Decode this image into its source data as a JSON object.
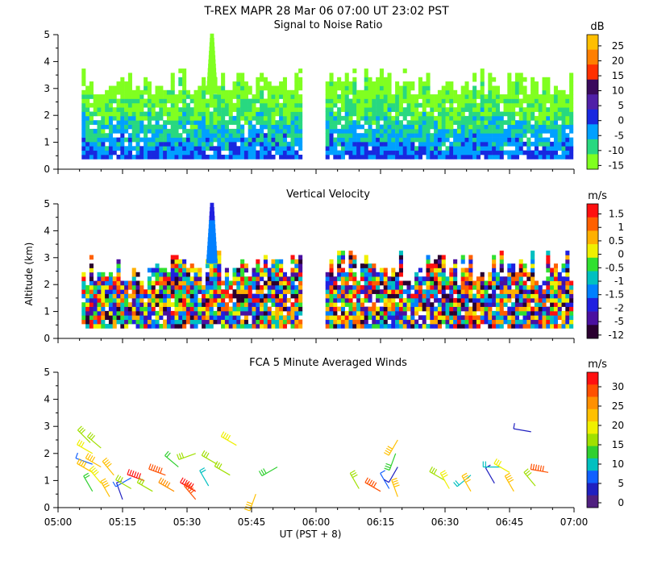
{
  "figure": {
    "title_line1": "T-REX   MAPR 28 Mar 06   07:00 UT   23:02   PST",
    "y_axis_label": "Altitude (km)",
    "x_axis_label": "UT  (PST + 8)"
  },
  "chart_data": [
    {
      "type": "heatmap",
      "title": "Signal to Noise Ratio",
      "x_ticks": [
        "05:00",
        "05:15",
        "05:30",
        "05:45",
        "06:00",
        "06:15",
        "06:30",
        "06:45",
        "07:00"
      ],
      "xlim_minutes": [
        0,
        120
      ],
      "y_ticks": [
        0,
        1,
        2,
        3,
        4,
        5
      ],
      "ylim_km": [
        0,
        5
      ],
      "colorbar_unit": "dB",
      "colorbar_labels": [
        "25",
        "20",
        "15",
        "10",
        "5",
        "0",
        "-5",
        "-10",
        "-15"
      ],
      "colorbar_colors": [
        "#ffbf00",
        "#ff7f00",
        "#ff3000",
        "#3a0a5c",
        "#5020a8",
        "#1828e0",
        "#00a0ff",
        "#28d880",
        "#80ff20"
      ],
      "data_gap_minutes": [
        56.4,
        62.2
      ],
      "coverage_minutes": [
        [
          5.5,
          56.4
        ],
        [
          62.2,
          119.5
        ]
      ],
      "min_alt_km": 0.38
    },
    {
      "type": "heatmap",
      "title": "Vertical Velocity",
      "x_ticks": [
        "05:00",
        "05:15",
        "05:30",
        "05:45",
        "06:00",
        "06:15",
        "06:30",
        "06:45",
        "07:00"
      ],
      "xlim_minutes": [
        0,
        120
      ],
      "y_ticks": [
        0,
        1,
        2,
        3,
        4,
        5
      ],
      "ylim_km": [
        0,
        5
      ],
      "colorbar_unit": "m/s",
      "colorbar_labels": [
        "1.5",
        "1",
        "0.5",
        "0",
        "-0.5",
        "-1",
        "-1.5",
        "-2",
        "-5",
        "-12"
      ],
      "colorbar_colors": [
        "#ff1010",
        "#ff6000",
        "#ffb000",
        "#f0f000",
        "#30e030",
        "#00c0c0",
        "#0080ff",
        "#2020e0",
        "#4a10a0",
        "#2a0030"
      ],
      "data_gap_minutes": [
        56.4,
        62.2
      ],
      "coverage_minutes": [
        [
          5.5,
          56.4
        ],
        [
          62.2,
          119.5
        ]
      ],
      "min_alt_km": 0.38
    },
    {
      "type": "scatter",
      "title": "FCA 5 Minute Averaged Winds",
      "x_ticks": [
        "05:00",
        "05:15",
        "05:30",
        "05:45",
        "06:00",
        "06:15",
        "06:30",
        "06:45",
        "07:00"
      ],
      "xlim_minutes": [
        0,
        120
      ],
      "y_ticks": [
        0,
        1,
        2,
        3,
        4,
        5
      ],
      "ylim_km": [
        0,
        5
      ],
      "colorbar_unit": "m/s",
      "colorbar_labels": [
        "30",
        "25",
        "20",
        "15",
        "10",
        "5",
        "0"
      ],
      "colorbar_colors": [
        "#ff1010",
        "#ff5000",
        "#ff9000",
        "#ffc000",
        "#f0f000",
        "#a0e000",
        "#30d030",
        "#00c0c0",
        "#1060ff",
        "#2020c0",
        "#502080"
      ],
      "barbs": [
        {
          "t": 7.5,
          "alt": 2.4,
          "speed": 15,
          "dir": 315
        },
        {
          "t": 8.0,
          "alt": 2.0,
          "speed": 17,
          "dir": 300
        },
        {
          "t": 8.0,
          "alt": 1.6,
          "speed": 5,
          "dir": 290
        },
        {
          "t": 8.0,
          "alt": 1.3,
          "speed": 22,
          "dir": 300
        },
        {
          "t": 8.0,
          "alt": 0.6,
          "speed": 12,
          "dir": 330
        },
        {
          "t": 10.0,
          "alt": 2.2,
          "speed": 14,
          "dir": 310
        },
        {
          "t": 10.0,
          "alt": 1.5,
          "speed": 20,
          "dir": 300
        },
        {
          "t": 10.0,
          "alt": 0.9,
          "speed": 18,
          "dir": 320
        },
        {
          "t": 12.0,
          "alt": 0.4,
          "speed": 21,
          "dir": 330
        },
        {
          "t": 13.0,
          "alt": 1.2,
          "speed": 20,
          "dir": 320
        },
        {
          "t": 15.0,
          "alt": 0.3,
          "speed": 4,
          "dir": 340
        },
        {
          "t": 17.0,
          "alt": 1.1,
          "speed": 5,
          "dir": 240
        },
        {
          "t": 17.0,
          "alt": 0.7,
          "speed": 14,
          "dir": 300
        },
        {
          "t": 20.0,
          "alt": 1.0,
          "speed": 29,
          "dir": 290
        },
        {
          "t": 22.0,
          "alt": 0.6,
          "speed": 16,
          "dir": 300
        },
        {
          "t": 25.0,
          "alt": 1.2,
          "speed": 28,
          "dir": 290
        },
        {
          "t": 27.0,
          "alt": 0.6,
          "speed": 25,
          "dir": 300
        },
        {
          "t": 28.0,
          "alt": 1.5,
          "speed": 12,
          "dir": 310
        },
        {
          "t": 32.0,
          "alt": 2.0,
          "speed": 15,
          "dir": 250
        },
        {
          "t": 32.0,
          "alt": 0.6,
          "speed": 29,
          "dir": 300
        },
        {
          "t": 32.0,
          "alt": 0.3,
          "speed": 27,
          "dir": 320
        },
        {
          "t": 35.0,
          "alt": 0.8,
          "speed": 10,
          "dir": 330
        },
        {
          "t": 37.0,
          "alt": 1.6,
          "speed": 15,
          "dir": 300
        },
        {
          "t": 40.0,
          "alt": 1.2,
          "speed": 14,
          "dir": 300
        },
        {
          "t": 41.5,
          "alt": 2.3,
          "speed": 18,
          "dir": 300
        },
        {
          "t": 46.0,
          "alt": 0.5,
          "speed": 20,
          "dir": 200
        },
        {
          "t": 51.0,
          "alt": 1.5,
          "speed": 13,
          "dir": 240
        },
        {
          "t": 70.0,
          "alt": 0.7,
          "speed": 14,
          "dir": 330
        },
        {
          "t": 75.0,
          "alt": 0.6,
          "speed": 27,
          "dir": 300
        },
        {
          "t": 77.0,
          "alt": 0.7,
          "speed": 6,
          "dir": 330
        },
        {
          "t": 78.5,
          "alt": 2.0,
          "speed": 13,
          "dir": 200
        },
        {
          "t": 79.0,
          "alt": 2.5,
          "speed": 21,
          "dir": 210
        },
        {
          "t": 79.0,
          "alt": 1.5,
          "speed": 3,
          "dir": 210
        },
        {
          "t": 79.0,
          "alt": 0.4,
          "speed": 20,
          "dir": 340
        },
        {
          "t": 90.0,
          "alt": 1.0,
          "speed": 14,
          "dir": 300
        },
        {
          "t": 91.0,
          "alt": 0.7,
          "speed": 17,
          "dir": 330
        },
        {
          "t": 96.0,
          "alt": 1.2,
          "speed": 10,
          "dir": 230
        },
        {
          "t": 96.0,
          "alt": 0.6,
          "speed": 20,
          "dir": 330
        },
        {
          "t": 101.5,
          "alt": 0.9,
          "speed": 3,
          "dir": 330
        },
        {
          "t": 103.0,
          "alt": 1.5,
          "speed": 9,
          "dir": 270
        },
        {
          "t": 105.0,
          "alt": 1.3,
          "speed": 17,
          "dir": 300
        },
        {
          "t": 106.0,
          "alt": 0.6,
          "speed": 20,
          "dir": 330
        },
        {
          "t": 110.0,
          "alt": 2.8,
          "speed": 4,
          "dir": 280
        },
        {
          "t": 111.0,
          "alt": 0.8,
          "speed": 14,
          "dir": 320
        },
        {
          "t": 114.0,
          "alt": 1.3,
          "speed": 28,
          "dir": 280
        }
      ]
    }
  ]
}
